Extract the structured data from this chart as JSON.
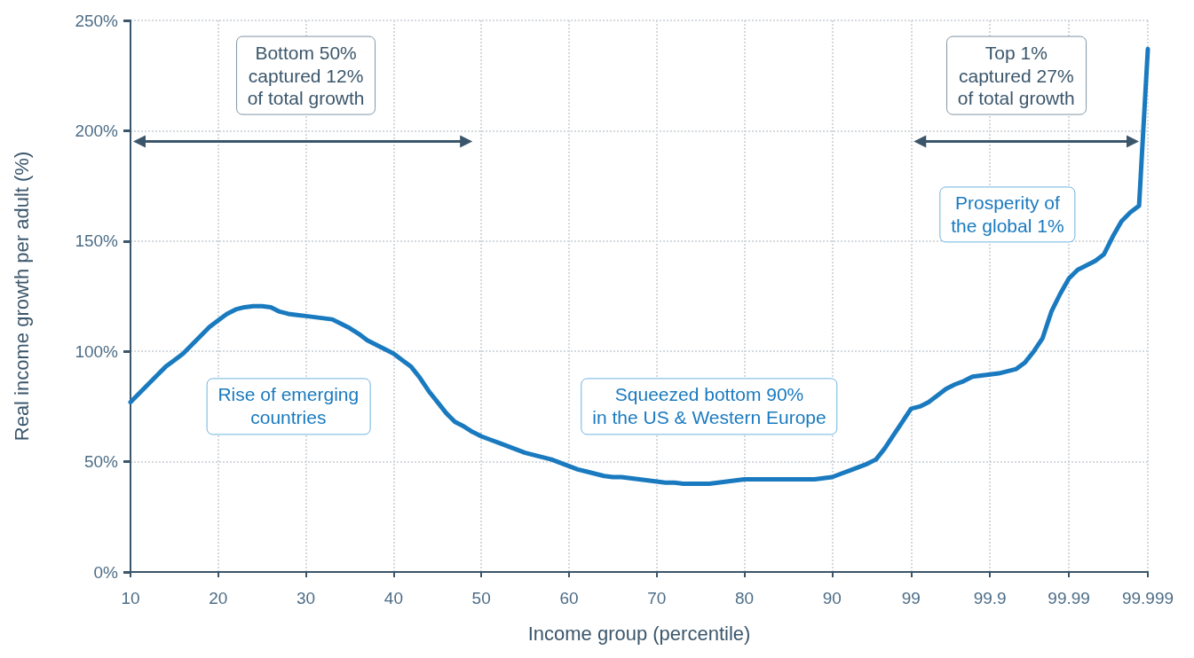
{
  "chart_data": {
    "type": "line",
    "xlabel": "Income group (percentile)",
    "ylabel": "Real income growth per adult (%)",
    "categories": [
      "10",
      null,
      null,
      null,
      null,
      null,
      null,
      null,
      null,
      null,
      "20",
      null,
      null,
      null,
      null,
      null,
      null,
      null,
      null,
      null,
      "30",
      null,
      null,
      null,
      null,
      null,
      null,
      null,
      null,
      null,
      "40",
      null,
      null,
      null,
      null,
      null,
      null,
      null,
      null,
      null,
      "50",
      null,
      null,
      null,
      null,
      null,
      null,
      null,
      null,
      null,
      "60",
      null,
      null,
      null,
      null,
      null,
      null,
      null,
      null,
      null,
      "70",
      null,
      null,
      null,
      null,
      null,
      null,
      null,
      null,
      null,
      "80",
      null,
      null,
      null,
      null,
      null,
      null,
      null,
      null,
      null,
      "90",
      null,
      null,
      null,
      null,
      null,
      null,
      null,
      null,
      "99",
      null,
      null,
      null,
      null,
      null,
      null,
      null,
      null,
      "99.9",
      null,
      null,
      null,
      null,
      null,
      null,
      null,
      null,
      "99.99",
      null,
      null,
      null,
      null,
      null,
      null,
      null,
      null,
      "99.999"
    ],
    "series": [
      {
        "color": "#1a7abf",
        "values": [
          77,
          81,
          85,
          89,
          93,
          96,
          99,
          103,
          107,
          111,
          114,
          117,
          119,
          120,
          120.5,
          120.5,
          120,
          118,
          117,
          116.5,
          116,
          115.5,
          115,
          114.5,
          112.5,
          110.5,
          108,
          105,
          103,
          101,
          99,
          96,
          93,
          88,
          82,
          77,
          72,
          68,
          66,
          63.5,
          61.5,
          60,
          58.5,
          57,
          55.5,
          54,
          53,
          52,
          51,
          49.5,
          48,
          46.5,
          45.5,
          44.5,
          43.5,
          43,
          43,
          42.5,
          42,
          41.5,
          41,
          40.5,
          40.5,
          40,
          40,
          40,
          40,
          40.5,
          41,
          41.5,
          42,
          42,
          42,
          42,
          42,
          42,
          42,
          42,
          42,
          42.5,
          43,
          44.5,
          46,
          47.5,
          49,
          51,
          56,
          62,
          68,
          74,
          75,
          77,
          80,
          83,
          85,
          86.5,
          88.5,
          89,
          89.5,
          90,
          91,
          92,
          95,
          100,
          106,
          118,
          126,
          133,
          137,
          139,
          141,
          144,
          152,
          159,
          163,
          166,
          237
        ]
      }
    ],
    "ylim": [
      0,
      250
    ],
    "yticks": [
      {
        "value": 0,
        "label": "0%"
      },
      {
        "value": 50,
        "label": "50%"
      },
      {
        "value": 100,
        "label": "100%"
      },
      {
        "value": 150,
        "label": "150%"
      },
      {
        "value": 200,
        "label": "200%"
      },
      {
        "value": 250,
        "label": "250%"
      }
    ],
    "grid": true,
    "marker": "none",
    "line_style": "solid",
    "annotations": [
      "Bottom 50%\ncaptured 12%\nof total growth",
      "Rise of emerging\ncountries",
      "Squeezed bottom 90%\nin the US & Western Europe",
      "Top 1%\ncaptured 27%\nof total growth",
      "Prosperity of\nthe global 1%"
    ]
  }
}
